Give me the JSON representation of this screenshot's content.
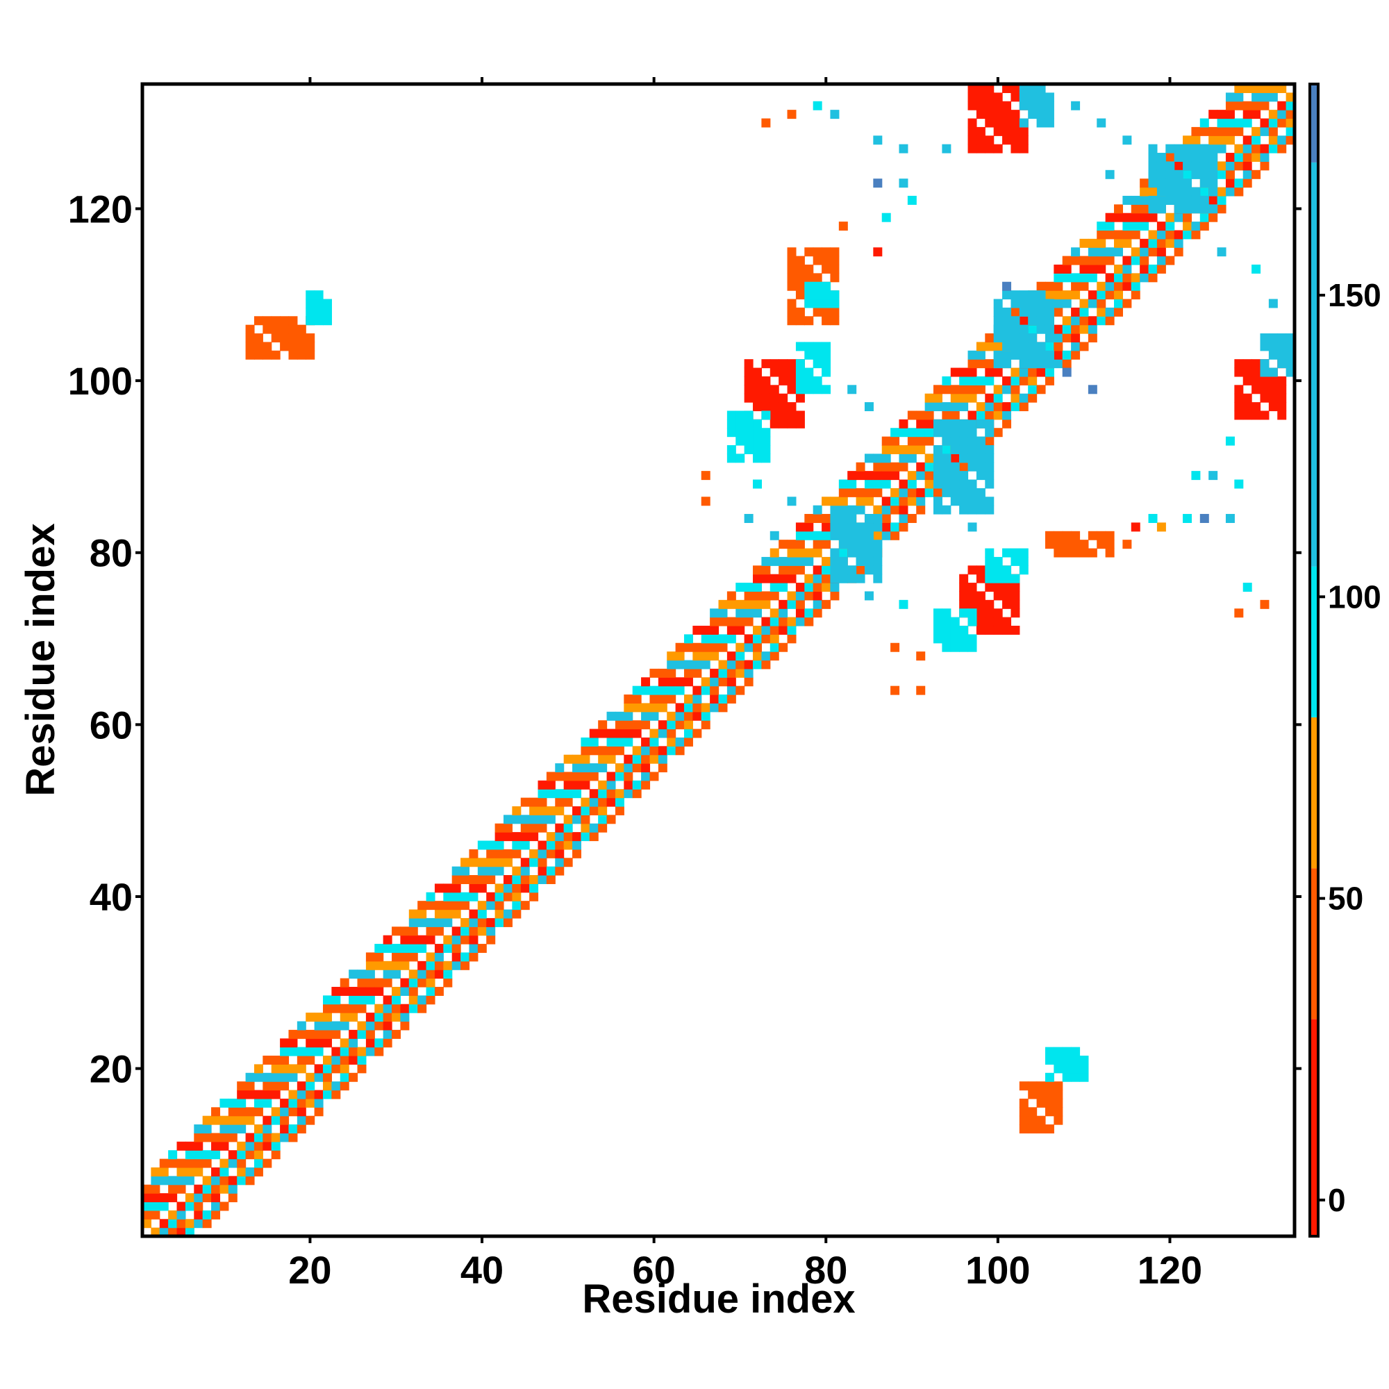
{
  "chart_data": {
    "type": "heatmap",
    "xlabel": "Residue index",
    "ylabel": "Residue index",
    "xlim": [
      1,
      134
    ],
    "ylim": [
      1,
      134
    ],
    "xticks": [
      20,
      40,
      60,
      80,
      100,
      120
    ],
    "yticks": [
      20,
      40,
      60,
      80,
      100,
      120
    ],
    "colorbar": {
      "range": [
        -6,
        185
      ],
      "ticks": [
        0,
        50,
        100,
        150
      ],
      "bands": [
        {
          "from": -6,
          "to": 30,
          "color": "#ff1a00"
        },
        {
          "from": 30,
          "to": 55,
          "color": "#ff5a00"
        },
        {
          "from": 55,
          "to": 80,
          "color": "#ff9a00"
        },
        {
          "from": 80,
          "to": 105,
          "color": "#00e5ee"
        },
        {
          "from": 105,
          "to": 172,
          "color": "#20c0e0"
        },
        {
          "from": 172,
          "to": 185,
          "color": "#4a80c0"
        }
      ],
      "top_color": "#ffffff"
    },
    "colors": {
      "red": "#ff1a00",
      "orange_red": "#ff5a00",
      "orange": "#ff9a00",
      "cyan": "#00e5ee",
      "sky": "#20c0e0",
      "steel": "#4a80c0"
    },
    "diagonal_band": {
      "from": 1,
      "to": 134,
      "half_width": 6,
      "color_cycle": [
        "orange_red",
        "red",
        "cyan",
        "orange_red",
        "orange",
        "sky"
      ]
    },
    "blocks": [
      {
        "x": [
          71,
          77
        ],
        "y": [
          95,
          102
        ],
        "color": "red"
      },
      {
        "x": [
          77,
          80
        ],
        "y": [
          99,
          104
        ],
        "color": "cyan"
      },
      {
        "x": [
          69,
          73
        ],
        "y": [
          91,
          96
        ],
        "color": "cyan"
      },
      {
        "x": [
          76,
          81
        ],
        "y": [
          107,
          115
        ],
        "color": "orange_red"
      },
      {
        "x": [
          78,
          81
        ],
        "y": [
          109,
          111
        ],
        "color": "cyan"
      },
      {
        "x": [
          96,
          102
        ],
        "y": [
          71,
          78
        ],
        "color": "red"
      },
      {
        "x": [
          99,
          103
        ],
        "y": [
          77,
          80
        ],
        "color": "cyan"
      },
      {
        "x": [
          93,
          97
        ],
        "y": [
          69,
          73
        ],
        "color": "cyan"
      },
      {
        "x": [
          106,
          113
        ],
        "y": [
          80,
          82
        ],
        "color": "orange_red"
      },
      {
        "x": [
          97,
          103
        ],
        "y": [
          127,
          134
        ],
        "color": "red"
      },
      {
        "x": [
          103,
          106
        ],
        "y": [
          130,
          134
        ],
        "color": "sky"
      },
      {
        "x": [
          128,
          133
        ],
        "y": [
          96,
          102
        ],
        "color": "red"
      },
      {
        "x": [
          131,
          134
        ],
        "y": [
          101,
          105
        ],
        "color": "sky"
      },
      {
        "x": [
          13,
          20
        ],
        "y": [
          103,
          107
        ],
        "color": "orange_red"
      },
      {
        "x": [
          20,
          22
        ],
        "y": [
          107,
          110
        ],
        "color": "cyan"
      },
      {
        "x": [
          103,
          107
        ],
        "y": [
          13,
          18
        ],
        "color": "orange_red"
      },
      {
        "x": [
          106,
          110
        ],
        "y": [
          19,
          22
        ],
        "color": "cyan"
      },
      {
        "x": [
          93,
          99
        ],
        "y": [
          85,
          95
        ],
        "color": "sky"
      },
      {
        "x": [
          100,
          106
        ],
        "y": [
          102,
          110
        ],
        "color": "sky"
      },
      {
        "x": [
          118,
          125
        ],
        "y": [
          120,
          127
        ],
        "color": "sky"
      },
      {
        "x": [
          81,
          86
        ],
        "y": [
          77,
          84
        ],
        "color": "sky"
      }
    ],
    "scatter": [
      {
        "x": 73,
        "y": 130,
        "color": "orange_red"
      },
      {
        "x": 76,
        "y": 131,
        "color": "orange_red"
      },
      {
        "x": 79,
        "y": 132,
        "color": "cyan"
      },
      {
        "x": 81,
        "y": 131,
        "color": "sky"
      },
      {
        "x": 86,
        "y": 128,
        "color": "sky"
      },
      {
        "x": 89,
        "y": 127,
        "color": "sky"
      },
      {
        "x": 94,
        "y": 127,
        "color": "sky"
      },
      {
        "x": 86,
        "y": 123,
        "color": "steel"
      },
      {
        "x": 89,
        "y": 123,
        "color": "sky"
      },
      {
        "x": 90,
        "y": 121,
        "color": "cyan"
      },
      {
        "x": 87,
        "y": 119,
        "color": "cyan"
      },
      {
        "x": 82,
        "y": 118,
        "color": "orange_red"
      },
      {
        "x": 86,
        "y": 115,
        "color": "red"
      },
      {
        "x": 109,
        "y": 132,
        "color": "sky"
      },
      {
        "x": 112,
        "y": 130,
        "color": "sky"
      },
      {
        "x": 115,
        "y": 128,
        "color": "sky"
      },
      {
        "x": 113,
        "y": 124,
        "color": "sky"
      },
      {
        "x": 126,
        "y": 115,
        "color": "sky"
      },
      {
        "x": 130,
        "y": 113,
        "color": "cyan"
      },
      {
        "x": 132,
        "y": 109,
        "color": "sky"
      },
      {
        "x": 101,
        "y": 111,
        "color": "steel"
      },
      {
        "x": 108,
        "y": 101,
        "color": "steel"
      },
      {
        "x": 111,
        "y": 99,
        "color": "steel"
      },
      {
        "x": 83,
        "y": 99,
        "color": "sky"
      },
      {
        "x": 85,
        "y": 97,
        "color": "sky"
      },
      {
        "x": 72,
        "y": 88,
        "color": "cyan"
      },
      {
        "x": 76,
        "y": 86,
        "color": "sky"
      },
      {
        "x": 66,
        "y": 89,
        "color": "orange_red"
      },
      {
        "x": 66,
        "y": 86,
        "color": "orange_red"
      },
      {
        "x": 71,
        "y": 84,
        "color": "sky"
      },
      {
        "x": 74,
        "y": 82,
        "color": "sky"
      },
      {
        "x": 85,
        "y": 75,
        "color": "sky"
      },
      {
        "x": 89,
        "y": 74,
        "color": "cyan"
      },
      {
        "x": 88,
        "y": 69,
        "color": "orange_red"
      },
      {
        "x": 91,
        "y": 68,
        "color": "orange_red"
      },
      {
        "x": 88,
        "y": 64,
        "color": "orange_red"
      },
      {
        "x": 91,
        "y": 64,
        "color": "orange_red"
      },
      {
        "x": 97,
        "y": 83,
        "color": "sky"
      },
      {
        "x": 116,
        "y": 83,
        "color": "red"
      },
      {
        "x": 115,
        "y": 81,
        "color": "orange_red"
      },
      {
        "x": 119,
        "y": 83,
        "color": "orange"
      },
      {
        "x": 118,
        "y": 84,
        "color": "cyan"
      },
      {
        "x": 122,
        "y": 84,
        "color": "cyan"
      },
      {
        "x": 124,
        "y": 84,
        "color": "steel"
      },
      {
        "x": 127,
        "y": 84,
        "color": "sky"
      },
      {
        "x": 123,
        "y": 89,
        "color": "cyan"
      },
      {
        "x": 125,
        "y": 89,
        "color": "sky"
      },
      {
        "x": 128,
        "y": 88,
        "color": "cyan"
      },
      {
        "x": 129,
        "y": 76,
        "color": "cyan"
      },
      {
        "x": 131,
        "y": 74,
        "color": "orange_red"
      },
      {
        "x": 128,
        "y": 73,
        "color": "orange_red"
      },
      {
        "x": 127,
        "y": 93,
        "color": "cyan"
      }
    ]
  }
}
